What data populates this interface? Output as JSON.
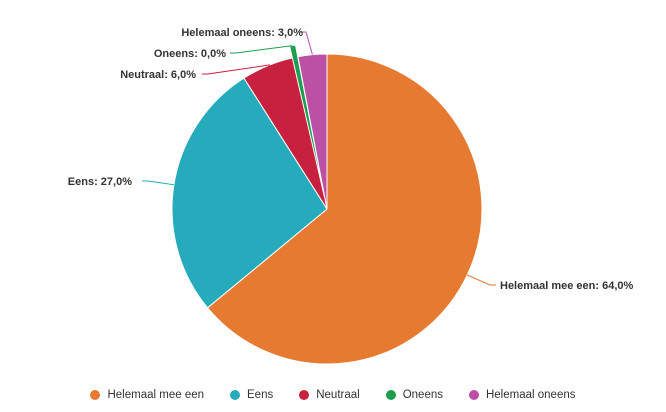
{
  "chart_data": {
    "type": "pie",
    "categories": [
      "Helemaal mee een",
      "Eens",
      "Neutraal",
      "Oneens",
      "Helemaal oneens"
    ],
    "values": [
      64.0,
      27.0,
      6.0,
      0.0,
      3.0
    ],
    "data_labels": [
      "Helemaal mee een: 64,0%",
      "Eens: 27,0%",
      "Neutraal: 6,0%",
      "Oneens: 0,0%",
      "Helemaal oneens: 3,0%"
    ],
    "colors": [
      "#e57a30",
      "#25abbb",
      "#c8213f",
      "#1c9e4e",
      "#bb50a5"
    ],
    "unit": "%",
    "legend_position": "bottom"
  }
}
